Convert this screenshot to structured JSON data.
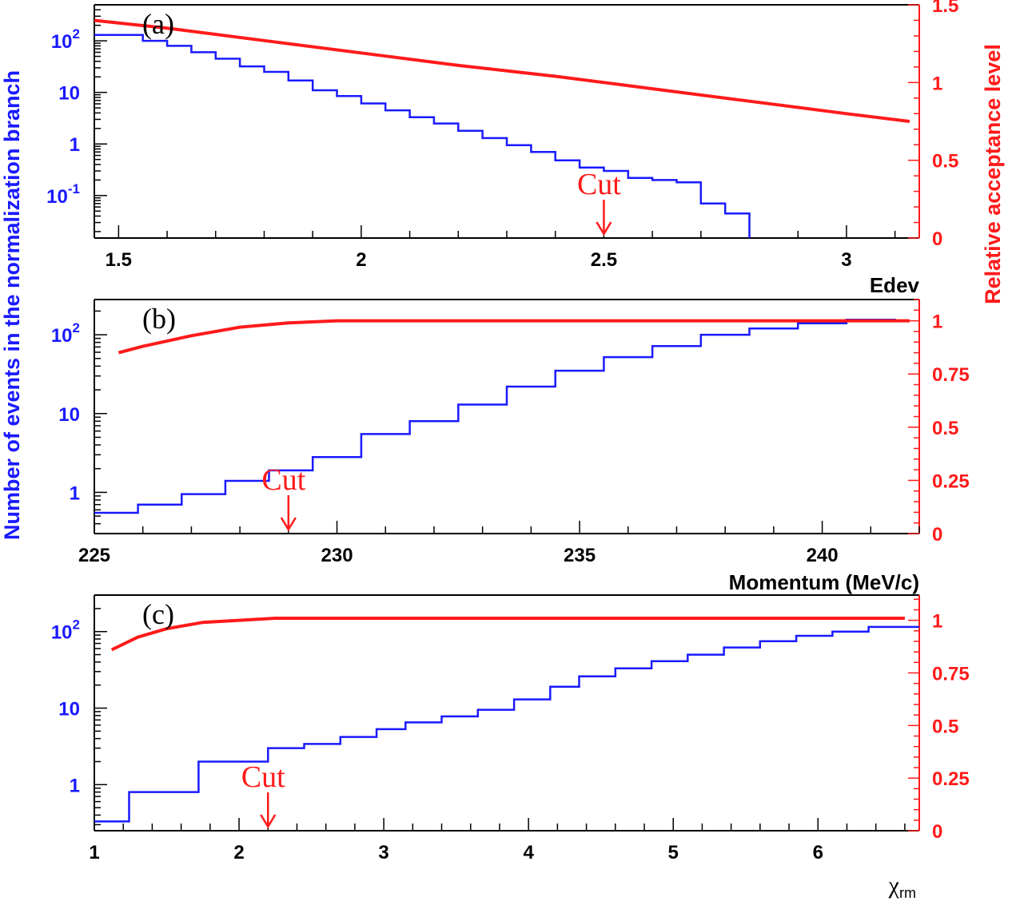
{
  "colors": {
    "hist": "#1a1aff",
    "acceptance": "#ff1a1a",
    "axis": "#000000"
  },
  "y_label_left": "Number of events in the normalization branch",
  "y_label_right": "Relative acceptance level",
  "chart_data": [
    {
      "type": "line",
      "panel_label": "(a)",
      "xlabel": "Edev",
      "xlim": [
        1.45,
        3.15
      ],
      "x_ticks": [
        "1.5",
        "2",
        "2.5",
        "3"
      ],
      "x_tick_values": [
        1.5,
        2,
        2.5,
        3
      ],
      "y_left_scale": "log",
      "y_left_range": [
        0.015,
        500
      ],
      "y_left_tick_values": [
        100,
        10,
        1,
        0.1
      ],
      "y_left_tick_labels": [
        {
          "base": "10",
          "exp": "2"
        },
        {
          "base": "10",
          "exp": ""
        },
        {
          "base": "1",
          "exp": ""
        },
        {
          "base": "10",
          "exp": "-1"
        }
      ],
      "y_right_range": [
        0,
        1.5
      ],
      "y_right_tick_values": [
        0,
        0.5,
        1,
        1.5
      ],
      "y_right_ticks": [
        "0",
        "0.5",
        "1",
        "1.5"
      ],
      "cut": {
        "label": "Cut",
        "x": 2.5
      },
      "series": [
        {
          "type": "step",
          "axis": "left",
          "edges": [
            1.45,
            1.55,
            1.6,
            1.65,
            1.7,
            1.75,
            1.8,
            1.85,
            1.9,
            1.95,
            2.0,
            2.05,
            2.1,
            2.15,
            2.2,
            2.25,
            2.3,
            2.35,
            2.4,
            2.45,
            2.5,
            2.55,
            2.6,
            2.65,
            2.7,
            2.75,
            2.8
          ],
          "values": [
            130,
            100,
            80,
            60,
            45,
            32,
            25,
            17,
            11,
            8.5,
            6.1,
            4.5,
            3.3,
            2.5,
            1.8,
            1.3,
            0.95,
            0.7,
            0.48,
            0.35,
            0.3,
            0.22,
            0.2,
            0.18,
            0.07,
            0.045
          ]
        },
        {
          "type": "line",
          "axis": "right",
          "x": [
            1.45,
            1.6,
            1.8,
            2.0,
            2.2,
            2.4,
            2.6,
            2.8,
            3.0,
            3.13
          ],
          "y": [
            1.4,
            1.35,
            1.27,
            1.19,
            1.11,
            1.04,
            0.96,
            0.88,
            0.8,
            0.75
          ]
        }
      ]
    },
    {
      "type": "line",
      "panel_label": "(b)",
      "xlabel": "Momentum (MeV/c)",
      "xlim": [
        225,
        242
      ],
      "x_ticks": [
        "225",
        "230",
        "235",
        "240"
      ],
      "x_tick_values": [
        225,
        230,
        235,
        240
      ],
      "y_left_scale": "log",
      "y_left_range": [
        0.3,
        280
      ],
      "y_left_tick_values": [
        100,
        10,
        1
      ],
      "y_left_tick_labels": [
        {
          "base": "10",
          "exp": "2"
        },
        {
          "base": "10",
          "exp": ""
        },
        {
          "base": "1",
          "exp": ""
        }
      ],
      "y_right_range": [
        0,
        1.1
      ],
      "y_right_tick_values": [
        0,
        0.25,
        0.5,
        0.75,
        1
      ],
      "y_right_ticks": [
        "0",
        "0.25",
        "0.5",
        "0.75",
        "1"
      ],
      "cut": {
        "label": "Cut",
        "x": 229
      },
      "series": [
        {
          "type": "step",
          "axis": "left",
          "edges": [
            225,
            225.9,
            226.8,
            227.7,
            228.6,
            229.5,
            230.5,
            231.5,
            232.5,
            233.5,
            234.5,
            235.5,
            236.5,
            237.5,
            238.5,
            239.5,
            240.5,
            241.5
          ],
          "values": [
            0.55,
            0.7,
            0.95,
            1.4,
            1.9,
            2.8,
            5.5,
            8,
            13,
            22,
            35,
            52,
            72,
            100,
            120,
            140,
            155,
            160
          ]
        },
        {
          "type": "line",
          "axis": "right",
          "x": [
            225.5,
            226,
            227,
            228,
            229,
            230,
            231,
            232,
            234,
            236,
            238,
            240,
            241.8
          ],
          "y": [
            0.85,
            0.88,
            0.93,
            0.97,
            0.99,
            1.0,
            1.0,
            1.0,
            1.0,
            1.0,
            1.0,
            1.0,
            1.0
          ]
        }
      ]
    },
    {
      "type": "line",
      "panel_label": "(c)",
      "xlabel": "χ",
      "xlabel_sub": "rm",
      "xlim": [
        1,
        6.7
      ],
      "x_ticks": [
        "1",
        "2",
        "3",
        "4",
        "5",
        "6"
      ],
      "x_tick_values": [
        1,
        2,
        3,
        4,
        5,
        6
      ],
      "y_left_scale": "log",
      "y_left_range": [
        0.25,
        300
      ],
      "y_left_tick_values": [
        100,
        10,
        1
      ],
      "y_left_tick_labels": [
        {
          "base": "10",
          "exp": "2"
        },
        {
          "base": "10",
          "exp": ""
        },
        {
          "base": "1",
          "exp": ""
        }
      ],
      "y_right_range": [
        0,
        1.12
      ],
      "y_right_tick_values": [
        0,
        0.25,
        0.5,
        0.75,
        1
      ],
      "y_right_ticks": [
        "0",
        "0.25",
        "0.5",
        "0.75",
        "1"
      ],
      "cut": {
        "label": "Cut",
        "x": 2.2
      },
      "series": [
        {
          "type": "step",
          "axis": "left",
          "edges": [
            1.0,
            1.24,
            1.72,
            2.2,
            2.45,
            2.7,
            2.95,
            3.15,
            3.4,
            3.65,
            3.9,
            4.15,
            4.35,
            4.6,
            4.85,
            5.1,
            5.35,
            5.6,
            5.85,
            6.1,
            6.35,
            6.7
          ],
          "values": [
            0.33,
            0.8,
            2.0,
            3.0,
            3.4,
            4.2,
            5.3,
            6.5,
            7.8,
            9.5,
            13,
            19,
            26,
            33,
            41,
            50,
            62,
            75,
            88,
            100,
            115
          ]
        },
        {
          "type": "line",
          "axis": "right",
          "x": [
            1.12,
            1.3,
            1.5,
            1.75,
            2.0,
            2.25,
            2.5,
            3.0,
            4.0,
            5.0,
            6.0,
            6.6
          ],
          "y": [
            0.86,
            0.92,
            0.96,
            0.99,
            1.0,
            1.01,
            1.01,
            1.01,
            1.01,
            1.01,
            1.01,
            1.01
          ]
        }
      ]
    }
  ]
}
